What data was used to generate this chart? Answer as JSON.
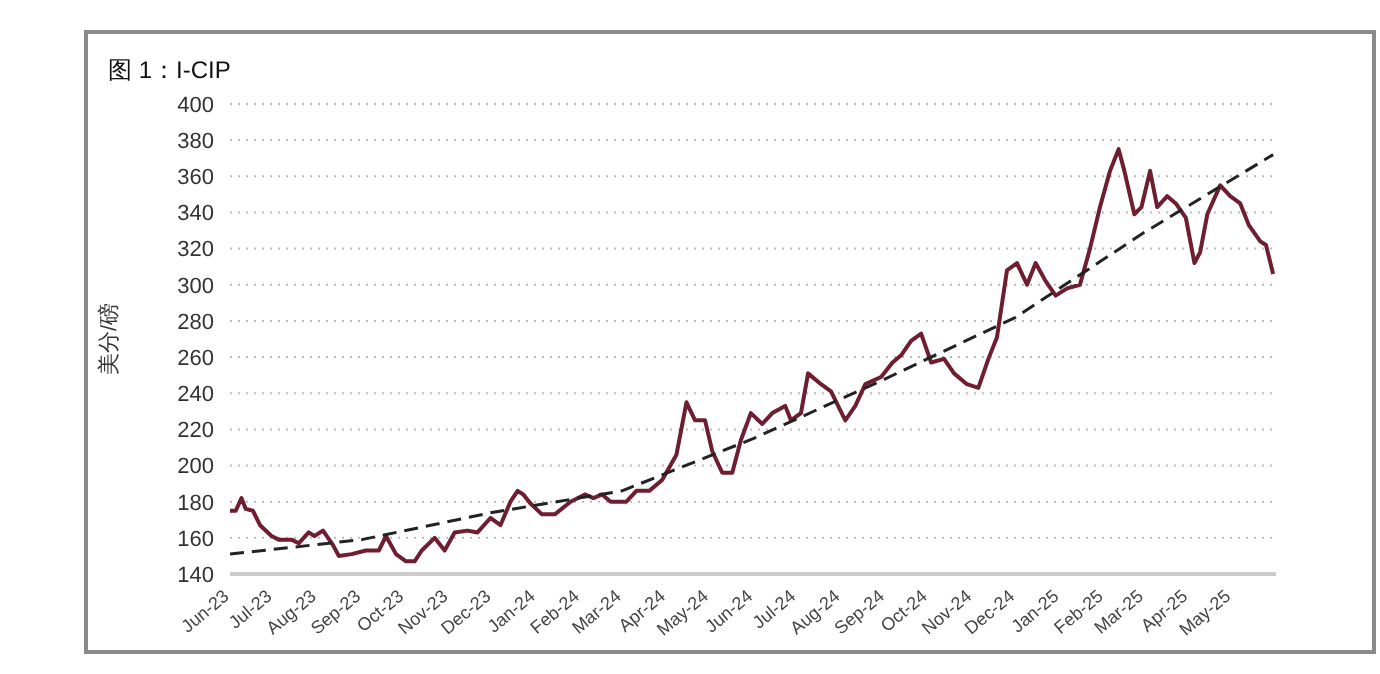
{
  "chart_data": {
    "type": "line",
    "title": "图 1：I-CIP",
    "ylabel": "美分/磅",
    "xlim": [
      "2023-06-01",
      "2025-06-01"
    ],
    "xticks": [
      {
        "value": "2023-06-01",
        "label": "Jun-23"
      },
      {
        "value": "2023-07-01",
        "label": "Jul-23"
      },
      {
        "value": "2023-08-01",
        "label": "Aug-23"
      },
      {
        "value": "2023-09-01",
        "label": "Sep-23"
      },
      {
        "value": "2023-10-01",
        "label": "Oct-23"
      },
      {
        "value": "2023-11-01",
        "label": "Nov-23"
      },
      {
        "value": "2023-12-01",
        "label": "Dec-23"
      },
      {
        "value": "2024-01-01",
        "label": "Jan-24"
      },
      {
        "value": "2024-02-01",
        "label": "Feb-24"
      },
      {
        "value": "2024-03-01",
        "label": "Mar-24"
      },
      {
        "value": "2024-04-01",
        "label": "Apr-24"
      },
      {
        "value": "2024-05-01",
        "label": "May-24"
      },
      {
        "value": "2024-06-01",
        "label": "Jun-24"
      },
      {
        "value": "2024-07-01",
        "label": "Jul-24"
      },
      {
        "value": "2024-08-01",
        "label": "Aug-24"
      },
      {
        "value": "2024-09-01",
        "label": "Sep-24"
      },
      {
        "value": "2024-10-01",
        "label": "Oct-24"
      },
      {
        "value": "2024-11-01",
        "label": "Nov-24"
      },
      {
        "value": "2024-12-01",
        "label": "Dec-24"
      },
      {
        "value": "2025-01-01",
        "label": "Jan-25"
      },
      {
        "value": "2025-02-01",
        "label": "Feb-25"
      },
      {
        "value": "2025-03-01",
        "label": "Mar-25"
      },
      {
        "value": "2025-04-01",
        "label": "Apr-25"
      },
      {
        "value": "2025-05-01",
        "label": "May-25"
      }
    ],
    "ylim": [
      140,
      400
    ],
    "yticks": [
      140,
      160,
      180,
      200,
      220,
      240,
      260,
      280,
      300,
      320,
      340,
      360,
      380,
      400
    ],
    "grid": "y",
    "series": [
      {
        "color": "#6e1e30",
        "line_style": "solid",
        "x": [
          "2023-06-01",
          "2023-06-05",
          "2023-06-09",
          "2023-06-12",
          "2023-06-17",
          "2023-06-22",
          "2023-06-30",
          "2023-07-05",
          "2023-07-14",
          "2023-07-19",
          "2023-07-26",
          "2023-07-30",
          "2023-08-05",
          "2023-08-12",
          "2023-08-16",
          "2023-08-25",
          "2023-09-04",
          "2023-09-13",
          "2023-09-18",
          "2023-09-25",
          "2023-10-02",
          "2023-10-08",
          "2023-10-13",
          "2023-10-22",
          "2023-10-29",
          "2023-11-05",
          "2023-11-14",
          "2023-11-21",
          "2023-11-30",
          "2023-12-07",
          "2023-12-14",
          "2023-12-19",
          "2023-12-23",
          "2023-12-28",
          "2024-01-05",
          "2024-01-14",
          "2024-01-25",
          "2024-02-04",
          "2024-02-10",
          "2024-02-16",
          "2024-02-22",
          "2024-03-04",
          "2024-03-11",
          "2024-03-20",
          "2024-03-29",
          "2024-04-08",
          "2024-04-15",
          "2024-04-21",
          "2024-04-28",
          "2024-05-03",
          "2024-05-10",
          "2024-05-17",
          "2024-05-23",
          "2024-05-30",
          "2024-06-07",
          "2024-06-14",
          "2024-06-23",
          "2024-06-27",
          "2024-07-04",
          "2024-07-09",
          "2024-07-18",
          "2024-07-25",
          "2024-08-04",
          "2024-08-11",
          "2024-08-18",
          "2024-08-29",
          "2024-09-06",
          "2024-09-12",
          "2024-09-19",
          "2024-09-26",
          "2024-10-03",
          "2024-10-12",
          "2024-10-19",
          "2024-10-28",
          "2024-11-05",
          "2024-11-12",
          "2024-11-18",
          "2024-11-25",
          "2024-12-02",
          "2024-12-09",
          "2024-12-15",
          "2024-12-22",
          "2024-12-29",
          "2025-01-06",
          "2025-01-15",
          "2025-01-22",
          "2025-01-29",
          "2025-02-05",
          "2025-02-11",
          "2025-02-15",
          "2025-02-22",
          "2025-02-27",
          "2025-03-05",
          "2025-03-10",
          "2025-03-17",
          "2025-03-23",
          "2025-03-30",
          "2025-04-05",
          "2025-04-09",
          "2025-04-14",
          "2025-04-23",
          "2025-04-30",
          "2025-05-07",
          "2025-05-13",
          "2025-05-21",
          "2025-05-25",
          "2025-05-30"
        ],
        "values": [
          175,
          175,
          182,
          176,
          175,
          167,
          161,
          159,
          159,
          157,
          163,
          161,
          164,
          156,
          150,
          151,
          153,
          153,
          161,
          151,
          147,
          147,
          153,
          160,
          153,
          163,
          164,
          163,
          171,
          167,
          180,
          186,
          184,
          179,
          173,
          173,
          180,
          184,
          182,
          184,
          180,
          180,
          186,
          186,
          192,
          206,
          235,
          225,
          225,
          208,
          196,
          196,
          214,
          229,
          223,
          229,
          233,
          225,
          229,
          251,
          245,
          241,
          225,
          233,
          245,
          249,
          257,
          261,
          269,
          273,
          257,
          259,
          251,
          245,
          243,
          259,
          271,
          308,
          312,
          300,
          312,
          302,
          294,
          298,
          300,
          320,
          343,
          363,
          375,
          363,
          339,
          343,
          363,
          343,
          349,
          345,
          337,
          312,
          318,
          339,
          355,
          349,
          345,
          333,
          324,
          322,
          306
        ]
      },
      {
        "color": "#222222",
        "line_style": "dashed",
        "x": [
          "2023-06-01",
          "2023-09-01",
          "2023-12-01",
          "2024-03-01",
          "2024-06-01",
          "2024-09-01",
          "2024-12-01",
          "2025-03-01",
          "2025-05-30"
        ],
        "values": [
          151,
          159,
          174,
          186,
          215,
          248,
          282,
          329,
          372
        ]
      }
    ]
  }
}
